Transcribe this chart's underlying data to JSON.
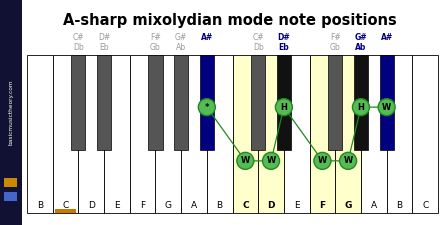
{
  "title": "A-sharp mixolydian mode note positions",
  "bg_color": "#ffffff",
  "white_key_color": "#ffffff",
  "black_key_color": "#555555",
  "highlight_white_color": "#ffffcc",
  "blue_black_color": "#000080",
  "orange_color": "#cc7700",
  "circle_fill": "#55bb55",
  "circle_edge": "#228822",
  "sidebar_bg": "#111133",
  "sidebar_text_color": "#ffffff",
  "orange_sq_color": "#cc8800",
  "blue_sq_color": "#4466cc",
  "wk_data": [
    {
      "note": "B",
      "hl": false,
      "bold": false,
      "orange": false,
      "circle": null
    },
    {
      "note": "C",
      "hl": false,
      "bold": false,
      "orange": true,
      "circle": null
    },
    {
      "note": "D",
      "hl": false,
      "bold": false,
      "orange": false,
      "circle": null
    },
    {
      "note": "E",
      "hl": false,
      "bold": false,
      "orange": false,
      "circle": null
    },
    {
      "note": "F",
      "hl": false,
      "bold": false,
      "orange": false,
      "circle": null
    },
    {
      "note": "G",
      "hl": false,
      "bold": false,
      "orange": false,
      "circle": null
    },
    {
      "note": "A",
      "hl": false,
      "bold": false,
      "orange": false,
      "circle": null
    },
    {
      "note": "B",
      "hl": false,
      "bold": false,
      "orange": false,
      "circle": null
    },
    {
      "note": "C",
      "hl": true,
      "bold": true,
      "orange": false,
      "circle": "W"
    },
    {
      "note": "D",
      "hl": true,
      "bold": true,
      "orange": false,
      "circle": "W"
    },
    {
      "note": "E",
      "hl": false,
      "bold": false,
      "orange": false,
      "circle": null
    },
    {
      "note": "F",
      "hl": true,
      "bold": true,
      "orange": false,
      "circle": "W"
    },
    {
      "note": "G",
      "hl": true,
      "bold": true,
      "orange": false,
      "circle": "W"
    },
    {
      "note": "A",
      "hl": false,
      "bold": false,
      "orange": false,
      "circle": null
    },
    {
      "note": "B",
      "hl": false,
      "bold": false,
      "orange": false,
      "circle": null
    },
    {
      "note": "C",
      "hl": false,
      "bold": false,
      "orange": false,
      "circle": null
    }
  ],
  "bk_data": [
    {
      "after": 1,
      "t1": "C#",
      "t2": "Db",
      "bold_t1": false,
      "bold_t2": false,
      "blue": false,
      "hl": false,
      "circle": null
    },
    {
      "after": 2,
      "t1": "D#",
      "t2": "Eb",
      "bold_t1": false,
      "bold_t2": false,
      "blue": false,
      "hl": false,
      "circle": null
    },
    {
      "after": 4,
      "t1": "F#",
      "t2": "Gb",
      "bold_t1": false,
      "bold_t2": false,
      "blue": false,
      "hl": false,
      "circle": null
    },
    {
      "after": 5,
      "t1": "G#",
      "t2": "Ab",
      "bold_t1": false,
      "bold_t2": false,
      "blue": false,
      "hl": false,
      "circle": null
    },
    {
      "after": 6,
      "t1": "A#",
      "t2": "",
      "bold_t1": true,
      "bold_t2": false,
      "blue": true,
      "hl": false,
      "circle": "*"
    },
    {
      "after": 8,
      "t1": "C#",
      "t2": "Db",
      "bold_t1": false,
      "bold_t2": false,
      "blue": false,
      "hl": false,
      "circle": null
    },
    {
      "after": 9,
      "t1": "D#",
      "t2": "Eb",
      "bold_t1": true,
      "bold_t2": true,
      "blue": false,
      "hl": true,
      "circle": "H"
    },
    {
      "after": 11,
      "t1": "F#",
      "t2": "Gb",
      "bold_t1": false,
      "bold_t2": false,
      "blue": false,
      "hl": false,
      "circle": null
    },
    {
      "after": 12,
      "t1": "G#",
      "t2": "Ab",
      "bold_t1": true,
      "bold_t2": true,
      "blue": false,
      "hl": true,
      "circle": "H"
    },
    {
      "after": 13,
      "t1": "A#",
      "t2": "",
      "bold_t1": true,
      "bold_t2": false,
      "blue": true,
      "hl": true,
      "circle": "W"
    }
  ]
}
